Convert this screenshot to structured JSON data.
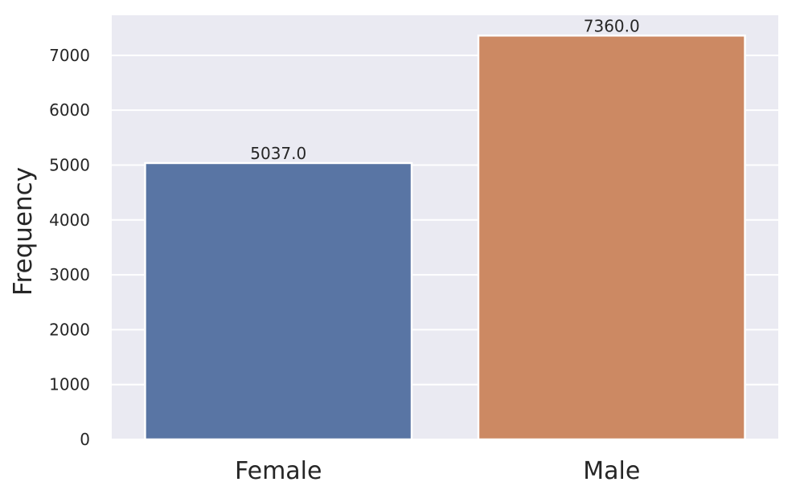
{
  "chart_data": {
    "type": "bar",
    "categories": [
      "Female",
      "Male"
    ],
    "values": [
      5037.0,
      7360.0
    ],
    "data_labels": [
      "5037.0",
      "7360.0"
    ],
    "title": "",
    "xlabel": "",
    "ylabel": "Frequency",
    "ylim": [
      0,
      7730
    ],
    "yticks": [
      0,
      1000,
      2000,
      3000,
      4000,
      5000,
      6000,
      7000
    ],
    "ytick_labels": [
      "0",
      "1000",
      "2000",
      "3000",
      "4000",
      "5000",
      "6000",
      "7000"
    ],
    "grid": true,
    "legend": "none",
    "colors": [
      "#5975a4",
      "#cc8963"
    ],
    "background_color": "#eaeaf2",
    "grid_color": "#ffffff"
  }
}
